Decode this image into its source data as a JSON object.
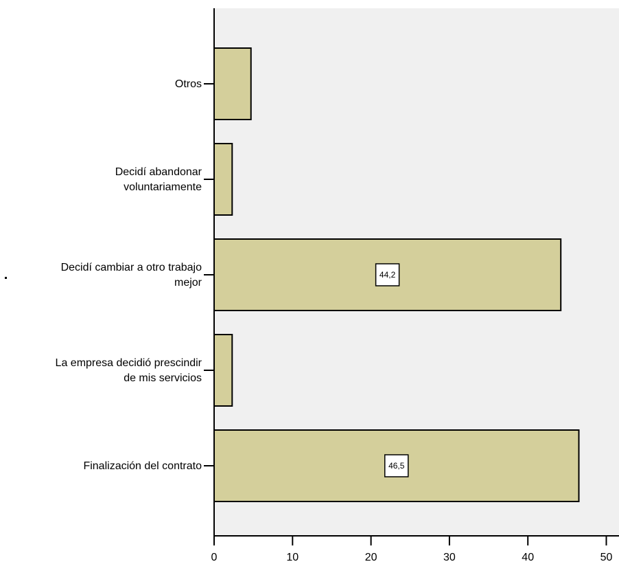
{
  "chart_data": {
    "type": "bar",
    "orientation": "horizontal",
    "categories": [
      [
        "Otros"
      ],
      [
        "Decidí abandonar",
        "voluntariamente"
      ],
      [
        "Decidí cambiar a otro trabajo",
        "mejor"
      ],
      [
        "La empresa decidió prescindir",
        "de mis servicios"
      ],
      [
        "Finalización del contrato"
      ]
    ],
    "values": [
      4.7,
      2.3,
      44.2,
      2.3,
      46.5
    ],
    "data_labels": [
      "",
      "",
      "44,2",
      "",
      "46,5"
    ],
    "x_ticks": [
      "0",
      "10",
      "20",
      "30",
      "40",
      "50"
    ],
    "xlim": [
      0,
      52
    ],
    "grid": false,
    "colors": {
      "bar_fill": "#d4cf9b",
      "bar_stroke": "#000000",
      "plot_background": "#f0f0f0",
      "label_box_fill": "#ffffff"
    }
  }
}
